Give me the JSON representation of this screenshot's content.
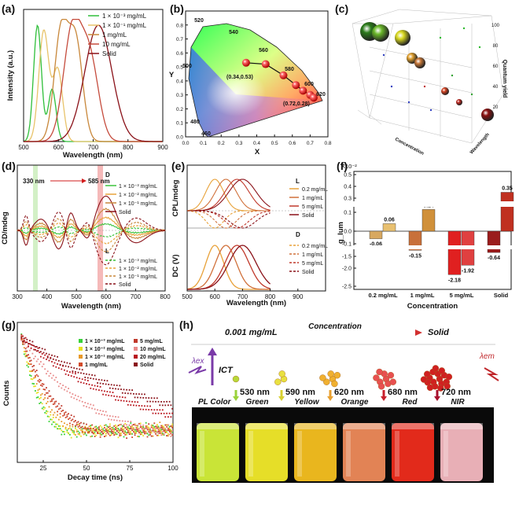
{
  "panels": {
    "a": {
      "letter": "(a)"
    },
    "b": {
      "letter": "(b)"
    },
    "c": {
      "letter": "(c)"
    },
    "d": {
      "letter": "(d)"
    },
    "e": {
      "letter": "(e)"
    },
    "f": {
      "letter": "(f)"
    },
    "g": {
      "letter": "(g)"
    },
    "h": {
      "letter": "(h)"
    }
  },
  "chart_data": [
    {
      "panel": "a",
      "type": "line",
      "xlabel": "Wavelength (nm)",
      "ylabel": "Intensity (a.u.)",
      "xlim": [
        500,
        900
      ],
      "xticks": [
        "500",
        "600",
        "700",
        "800",
        "900"
      ],
      "series": [
        {
          "name": "1 × 10⁻³ mg/mL",
          "color": "#2fbf3a",
          "peaks": [
            [
              540,
              1.0
            ],
            [
              582,
              0.45
            ]
          ],
          "width": 16
        },
        {
          "name": "1 × 10⁻¹ mg/mL",
          "color": "#e8c36a",
          "peaks": [
            [
              558,
              0.95
            ],
            [
              598,
              0.62
            ]
          ],
          "width": 20
        },
        {
          "name": "1 mg/mL",
          "color": "#c8873a",
          "peaks": [
            [
              608,
              0.95
            ],
            [
              650,
              0.85
            ]
          ],
          "width": 28
        },
        {
          "name": "10 mg/mL",
          "color": "#c54b3c",
          "peaks": [
            [
              640,
              0.95
            ],
            [
              690,
              0.7
            ]
          ],
          "width": 36
        },
        {
          "name": "Solid",
          "color": "#8a1118",
          "peaks": [
            [
              715,
              1.0
            ]
          ],
          "width": 55
        }
      ]
    },
    {
      "panel": "b",
      "type": "scatter",
      "xlabel": "X",
      "ylabel": "Y",
      "xlim": [
        0,
        0.8
      ],
      "ylim": [
        0,
        0.9
      ],
      "xticks": [
        "0.0",
        "0.1",
        "0.2",
        "0.3",
        "0.4",
        "0.5",
        "0.6",
        "0.7",
        "0.8"
      ],
      "yticks": [
        "0.0",
        "0.1",
        "0.2",
        "0.3",
        "0.4",
        "0.5",
        "0.6",
        "0.7",
        "0.8"
      ],
      "wavelength_labels": [
        "460",
        "480",
        "500",
        "520",
        "540",
        "560",
        "580",
        "600",
        "620"
      ],
      "points": [
        [
          0.34,
          0.53
        ],
        [
          0.45,
          0.52
        ],
        [
          0.55,
          0.44
        ],
        [
          0.62,
          0.37
        ],
        [
          0.66,
          0.33
        ],
        [
          0.7,
          0.3
        ],
        [
          0.72,
          0.28
        ]
      ],
      "point_labels": [
        "(0.34,0.53)",
        "(0.72,0.28)"
      ]
    },
    {
      "panel": "c",
      "type": "scatter",
      "zlabel": "Quantum yield",
      "xlabel": "Concentration",
      "ylabel": "Wavelength",
      "zticks": [
        "20",
        "40",
        "60",
        "80",
        "100"
      ]
    },
    {
      "panel": "d",
      "type": "line",
      "xlabel": "Wavelength (nm)",
      "ylabel": "CD/mdeg",
      "xlim": [
        300,
        800
      ],
      "xticks": [
        "300",
        "400",
        "500",
        "600",
        "700",
        "800"
      ],
      "annotations": {
        "start": "330 nm",
        "end": "585 nm",
        "D": "D",
        "L": "L"
      },
      "legend_D": [
        "1 × 10⁻³ mg/mL",
        "1 × 10⁻² mg/mL",
        "1 × 10⁻¹ mg/mL",
        "Solid"
      ],
      "legend_L": [
        "1 × 10⁻³ mg/mL",
        "1 × 10⁻² mg/mL",
        "1 × 10⁻¹ mg/mL",
        "Solid"
      ],
      "colors": [
        "#3cc23c",
        "#e8a23a",
        "#c8873a",
        "#8a1118"
      ]
    },
    {
      "panel": "e",
      "type": "line",
      "xlabel": "Wavelength (nm)",
      "ylabel_top": "CPL/mdeg",
      "ylabel_bottom": "DC (V)",
      "xlim": [
        500,
        1000
      ],
      "xticks": [
        "500",
        "600",
        "700",
        "800",
        "900"
      ],
      "legend_L_title": "L",
      "legend_D_title": "D",
      "legend": [
        "0.2 mg/mL",
        "1 mg/mL",
        "5 mg/mL",
        "Solid"
      ],
      "colors": [
        "#e8a23a",
        "#d0703a",
        "#c0392b",
        "#8a1118"
      ],
      "peaks": [
        600,
        640,
        680,
        700
      ]
    },
    {
      "panel": "f",
      "type": "bar",
      "xlabel": "Concentration",
      "ylabel": "g_lum",
      "exponent": "X10⁻²",
      "categories": [
        "0.2 mg/mL",
        "1 mg/mL",
        "5 mg/mL",
        "Solid"
      ],
      "series": [
        {
          "values": [
            -0.06,
            -0.15,
            -2.18,
            -0.64
          ]
        },
        {
          "values": [
            0.06,
            0.14,
            -1.92,
            0.35
          ]
        }
      ],
      "value_labels": [
        [
          "-0.06",
          "-0.15",
          "-2.18",
          "-0.64"
        ],
        [
          "0.06",
          "0.14",
          "-1.92",
          "0.35"
        ]
      ],
      "yticks": [
        "0.5",
        "0.4",
        "0.3",
        "0.1",
        "0.0",
        "-0.1",
        "-1.5",
        "-2.0",
        "-2.5"
      ]
    },
    {
      "panel": "g",
      "type": "scatter",
      "xlabel": "Decay time (ns)",
      "ylabel": "Counts",
      "xlim": [
        10,
        100
      ],
      "xticks": [
        "25",
        "50",
        "75",
        "100"
      ],
      "series": [
        {
          "name": "1 × 10⁻³ mg/mL",
          "color": "#39d239",
          "tau": 12
        },
        {
          "name": "1 × 10⁻² mg/mL",
          "color": "#e8e020",
          "tau": 13
        },
        {
          "name": "1 × 10⁻¹ mg/mL",
          "color": "#e89a2a",
          "tau": 16
        },
        {
          "name": "1 mg/mL",
          "color": "#d24a2a",
          "tau": 20
        },
        {
          "name": "5 mg/mL",
          "color": "#c0392b",
          "tau": 22
        },
        {
          "name": "10 mg/mL",
          "color": "#e88a8a",
          "tau": 40
        },
        {
          "name": "20 mg/mL",
          "color": "#b8141c",
          "tau": 70
        },
        {
          "name": "Solid",
          "color": "#8a1118",
          "tau": 90
        }
      ]
    }
  ],
  "panel_h": {
    "concentration_start": "0.001 mg/mL",
    "concentration_label": "Concentration",
    "concentration_end": "Solid",
    "lambda_ex": "λex",
    "lambda_em": "λem",
    "ict": "ICT",
    "wavelengths": [
      "530 nm",
      "590 nm",
      "620 nm",
      "680 nm",
      "720 nm"
    ],
    "pl_color_label": "PL Color",
    "colors": [
      "Green",
      "Yellow",
      "Orange",
      "Red",
      "NIR"
    ],
    "vial_colors": [
      "#d4f03a",
      "#f2ea2a",
      "#f6c020",
      "#ee8a5a",
      "#ee2c1c",
      "#f4b8c0"
    ]
  }
}
